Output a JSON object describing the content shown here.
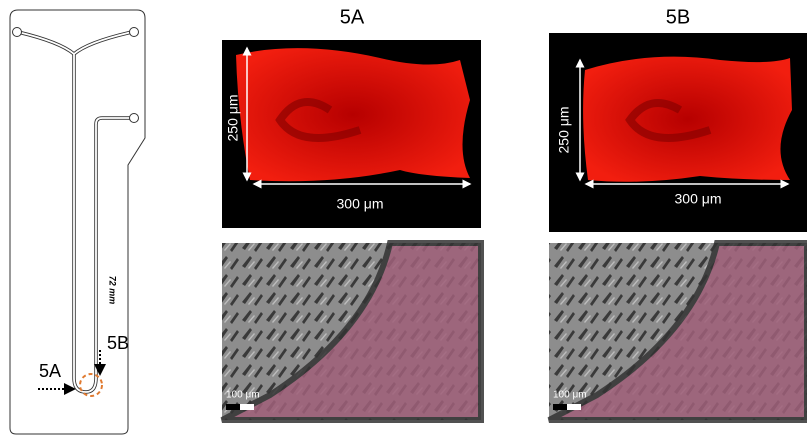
{
  "chip": {
    "labels": [
      "5A",
      "5B"
    ],
    "length_label": "72 mm"
  },
  "panels": [
    {
      "title": "5A",
      "top": {
        "height_label": "250 μm",
        "width_label": "300 μm"
      },
      "bottom": {
        "scale_label": "100 μm"
      }
    },
    {
      "title": "5B",
      "top": {
        "height_label": "250 μm",
        "width_label": "300 μm"
      },
      "bottom": {
        "scale_label": "100 μm"
      }
    }
  ]
}
